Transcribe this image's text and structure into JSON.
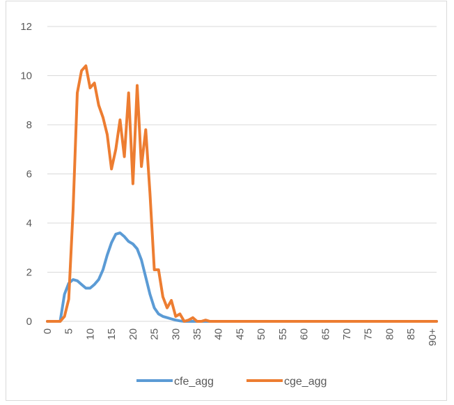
{
  "chart_data": {
    "type": "line",
    "title": "",
    "xlabel": "",
    "ylabel": "",
    "ylim": [
      0,
      12
    ],
    "yticks": [
      0,
      2,
      4,
      6,
      8,
      10,
      12
    ],
    "xticks": [
      "0",
      "5",
      "10",
      "15",
      "20",
      "25",
      "30",
      "35",
      "40",
      "45",
      "50",
      "55",
      "60",
      "65",
      "70",
      "75",
      "80",
      "85",
      "90+"
    ],
    "xmax": 91,
    "grid": "horizontal",
    "legend_position": "bottom",
    "series": [
      {
        "name": "cfe_agg",
        "color": "#5b9bd5",
        "points": [
          [
            0,
            0
          ],
          [
            1,
            0
          ],
          [
            2,
            0
          ],
          [
            3,
            0
          ],
          [
            4,
            1.1
          ],
          [
            5,
            1.55
          ],
          [
            6,
            1.7
          ],
          [
            7,
            1.65
          ],
          [
            8,
            1.5
          ],
          [
            9,
            1.35
          ],
          [
            10,
            1.35
          ],
          [
            11,
            1.5
          ],
          [
            12,
            1.7
          ],
          [
            13,
            2.1
          ],
          [
            14,
            2.7
          ],
          [
            15,
            3.2
          ],
          [
            16,
            3.55
          ],
          [
            17,
            3.6
          ],
          [
            18,
            3.45
          ],
          [
            19,
            3.25
          ],
          [
            20,
            3.15
          ],
          [
            21,
            2.95
          ],
          [
            22,
            2.5
          ],
          [
            23,
            1.8
          ],
          [
            24,
            1.1
          ],
          [
            25,
            0.55
          ],
          [
            26,
            0.3
          ],
          [
            27,
            0.2
          ],
          [
            28,
            0.15
          ],
          [
            29,
            0.1
          ],
          [
            30,
            0.05
          ],
          [
            31,
            0.02
          ],
          [
            32,
            0
          ],
          [
            91,
            0
          ]
        ]
      },
      {
        "name": "cge_agg",
        "color": "#ed7d31",
        "points": [
          [
            0,
            0
          ],
          [
            1,
            0
          ],
          [
            2,
            0
          ],
          [
            3,
            0
          ],
          [
            4,
            0.2
          ],
          [
            5,
            0.9
          ],
          [
            6,
            4.5
          ],
          [
            7,
            9.3
          ],
          [
            8,
            10.2
          ],
          [
            9,
            10.4
          ],
          [
            10,
            9.5
          ],
          [
            11,
            9.7
          ],
          [
            12,
            8.8
          ],
          [
            13,
            8.3
          ],
          [
            14,
            7.6
          ],
          [
            15,
            6.2
          ],
          [
            16,
            7.0
          ],
          [
            17,
            8.2
          ],
          [
            18,
            6.7
          ],
          [
            19,
            9.3
          ],
          [
            20,
            5.6
          ],
          [
            21,
            9.6
          ],
          [
            22,
            6.3
          ],
          [
            23,
            7.8
          ],
          [
            24,
            5.2
          ],
          [
            25,
            2.1
          ],
          [
            26,
            2.1
          ],
          [
            27,
            1.0
          ],
          [
            28,
            0.55
          ],
          [
            29,
            0.85
          ],
          [
            30,
            0.2
          ],
          [
            31,
            0.3
          ],
          [
            32,
            0
          ],
          [
            33,
            0.05
          ],
          [
            34,
            0.15
          ],
          [
            35,
            0
          ],
          [
            36,
            0
          ],
          [
            37,
            0.05
          ],
          [
            38,
            0
          ],
          [
            91,
            0
          ]
        ]
      }
    ]
  }
}
